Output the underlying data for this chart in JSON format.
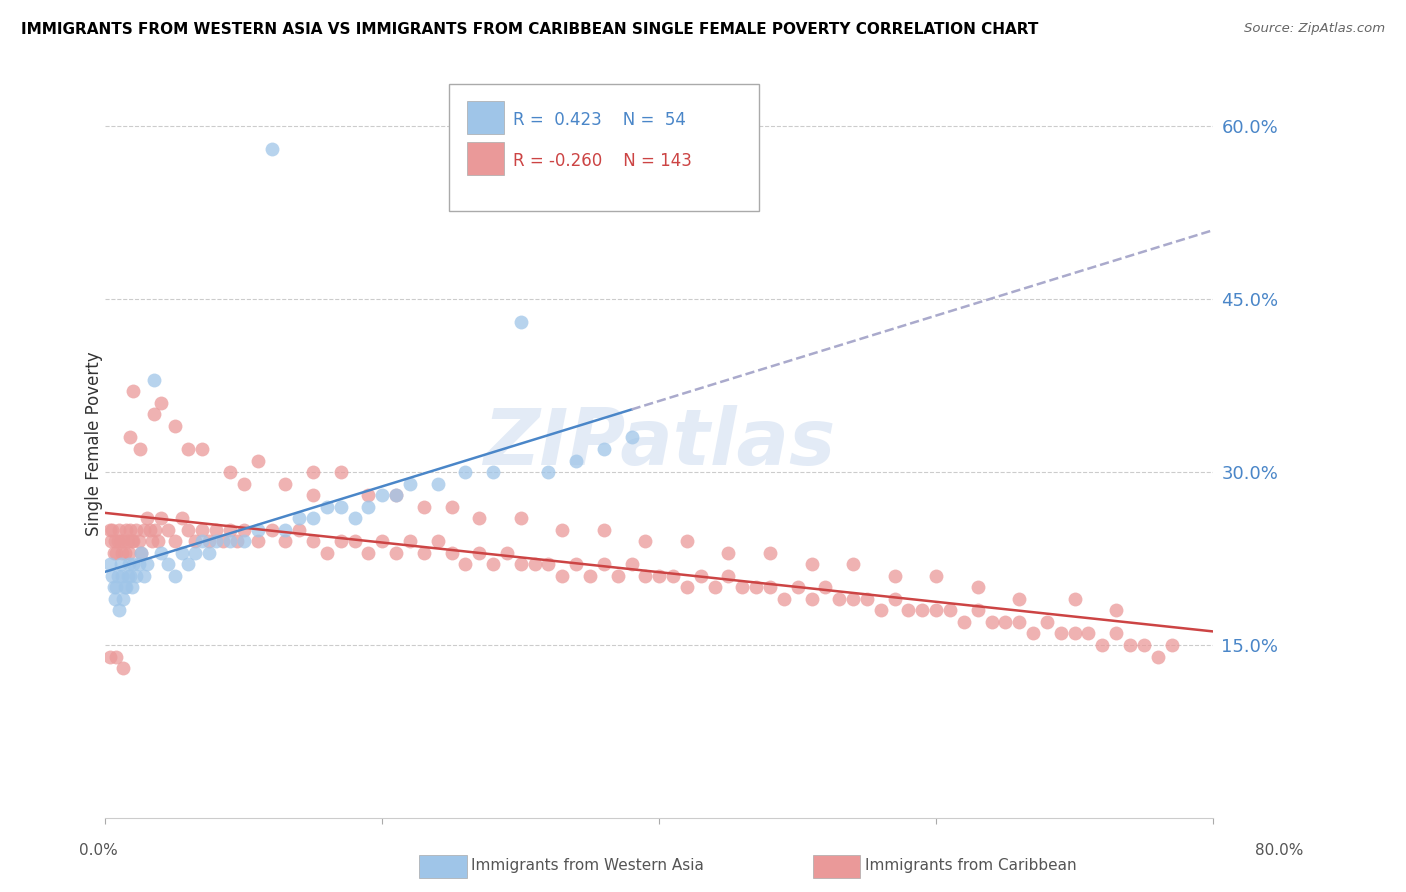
{
  "title": "IMMIGRANTS FROM WESTERN ASIA VS IMMIGRANTS FROM CARIBBEAN SINGLE FEMALE POVERTY CORRELATION CHART",
  "source": "Source: ZipAtlas.com",
  "ylabel": "Single Female Poverty",
  "yticks": [
    0.15,
    0.3,
    0.45,
    0.6
  ],
  "ytick_labels": [
    "15.0%",
    "30.0%",
    "45.0%",
    "60.0%"
  ],
  "xmin": 0.0,
  "xmax": 0.8,
  "ymin": 0.0,
  "ymax": 0.65,
  "color_blue": "#9fc5e8",
  "color_pink": "#ea9999",
  "color_blue_line": "#4a86c8",
  "color_pink_line": "#cc4444",
  "color_blue_dashed": "#aaaacc",
  "color_blue_text": "#4a86c8",
  "color_pink_text": "#cc4444",
  "watermark": "ZIPatlas",
  "wa_slope": 0.52,
  "wa_intercept": 0.155,
  "c_slope": -0.065,
  "c_intercept": 0.255,
  "western_asia_x": [
    0.003,
    0.005,
    0.006,
    0.007,
    0.008,
    0.009,
    0.01,
    0.011,
    0.012,
    0.013,
    0.014,
    0.015,
    0.016,
    0.017,
    0.018,
    0.019,
    0.02,
    0.022,
    0.024,
    0.026,
    0.028,
    0.03,
    0.035,
    0.04,
    0.045,
    0.05,
    0.055,
    0.06,
    0.065,
    0.07,
    0.075,
    0.08,
    0.09,
    0.1,
    0.11,
    0.12,
    0.13,
    0.14,
    0.15,
    0.16,
    0.17,
    0.18,
    0.19,
    0.2,
    0.21,
    0.22,
    0.24,
    0.26,
    0.28,
    0.3,
    0.32,
    0.34,
    0.36,
    0.38
  ],
  "western_asia_y": [
    0.22,
    0.21,
    0.2,
    0.19,
    0.2,
    0.21,
    0.18,
    0.22,
    0.21,
    0.19,
    0.2,
    0.2,
    0.21,
    0.22,
    0.21,
    0.2,
    0.22,
    0.21,
    0.22,
    0.23,
    0.21,
    0.22,
    0.38,
    0.23,
    0.22,
    0.21,
    0.23,
    0.22,
    0.23,
    0.24,
    0.23,
    0.24,
    0.24,
    0.24,
    0.25,
    0.58,
    0.25,
    0.26,
    0.26,
    0.27,
    0.27,
    0.26,
    0.27,
    0.28,
    0.28,
    0.29,
    0.29,
    0.3,
    0.3,
    0.43,
    0.3,
    0.31,
    0.32,
    0.33
  ],
  "caribbean_x": [
    0.003,
    0.004,
    0.005,
    0.006,
    0.007,
    0.008,
    0.009,
    0.01,
    0.011,
    0.012,
    0.013,
    0.014,
    0.015,
    0.016,
    0.017,
    0.018,
    0.019,
    0.02,
    0.022,
    0.024,
    0.026,
    0.028,
    0.03,
    0.032,
    0.034,
    0.036,
    0.038,
    0.04,
    0.045,
    0.05,
    0.055,
    0.06,
    0.065,
    0.07,
    0.075,
    0.08,
    0.085,
    0.09,
    0.095,
    0.1,
    0.11,
    0.12,
    0.13,
    0.14,
    0.15,
    0.16,
    0.17,
    0.18,
    0.19,
    0.2,
    0.21,
    0.22,
    0.23,
    0.24,
    0.25,
    0.26,
    0.27,
    0.28,
    0.29,
    0.3,
    0.31,
    0.32,
    0.33,
    0.34,
    0.35,
    0.36,
    0.37,
    0.38,
    0.39,
    0.4,
    0.41,
    0.42,
    0.43,
    0.44,
    0.45,
    0.46,
    0.47,
    0.48,
    0.49,
    0.5,
    0.51,
    0.52,
    0.53,
    0.54,
    0.55,
    0.56,
    0.57,
    0.58,
    0.59,
    0.6,
    0.61,
    0.62,
    0.63,
    0.64,
    0.65,
    0.66,
    0.67,
    0.68,
    0.69,
    0.7,
    0.71,
    0.72,
    0.73,
    0.74,
    0.75,
    0.76,
    0.77,
    0.003,
    0.008,
    0.013,
    0.018,
    0.025,
    0.035,
    0.05,
    0.07,
    0.09,
    0.11,
    0.13,
    0.15,
    0.17,
    0.19,
    0.21,
    0.23,
    0.25,
    0.27,
    0.3,
    0.33,
    0.36,
    0.39,
    0.42,
    0.45,
    0.48,
    0.51,
    0.54,
    0.57,
    0.6,
    0.63,
    0.66,
    0.7,
    0.73,
    0.02,
    0.04,
    0.06,
    0.1,
    0.15
  ],
  "caribbean_y": [
    0.25,
    0.24,
    0.25,
    0.23,
    0.24,
    0.23,
    0.24,
    0.25,
    0.24,
    0.23,
    0.24,
    0.23,
    0.25,
    0.24,
    0.23,
    0.25,
    0.24,
    0.24,
    0.25,
    0.24,
    0.23,
    0.25,
    0.26,
    0.25,
    0.24,
    0.25,
    0.24,
    0.26,
    0.25,
    0.24,
    0.26,
    0.25,
    0.24,
    0.25,
    0.24,
    0.25,
    0.24,
    0.25,
    0.24,
    0.25,
    0.24,
    0.25,
    0.24,
    0.25,
    0.24,
    0.23,
    0.24,
    0.24,
    0.23,
    0.24,
    0.23,
    0.24,
    0.23,
    0.24,
    0.23,
    0.22,
    0.23,
    0.22,
    0.23,
    0.22,
    0.22,
    0.22,
    0.21,
    0.22,
    0.21,
    0.22,
    0.21,
    0.22,
    0.21,
    0.21,
    0.21,
    0.2,
    0.21,
    0.2,
    0.21,
    0.2,
    0.2,
    0.2,
    0.19,
    0.2,
    0.19,
    0.2,
    0.19,
    0.19,
    0.19,
    0.18,
    0.19,
    0.18,
    0.18,
    0.18,
    0.18,
    0.17,
    0.18,
    0.17,
    0.17,
    0.17,
    0.16,
    0.17,
    0.16,
    0.16,
    0.16,
    0.15,
    0.16,
    0.15,
    0.15,
    0.14,
    0.15,
    0.14,
    0.14,
    0.13,
    0.33,
    0.32,
    0.35,
    0.34,
    0.32,
    0.3,
    0.31,
    0.29,
    0.3,
    0.3,
    0.28,
    0.28,
    0.27,
    0.27,
    0.26,
    0.26,
    0.25,
    0.25,
    0.24,
    0.24,
    0.23,
    0.23,
    0.22,
    0.22,
    0.21,
    0.21,
    0.2,
    0.19,
    0.19,
    0.18,
    0.37,
    0.36,
    0.32,
    0.29,
    0.28
  ]
}
